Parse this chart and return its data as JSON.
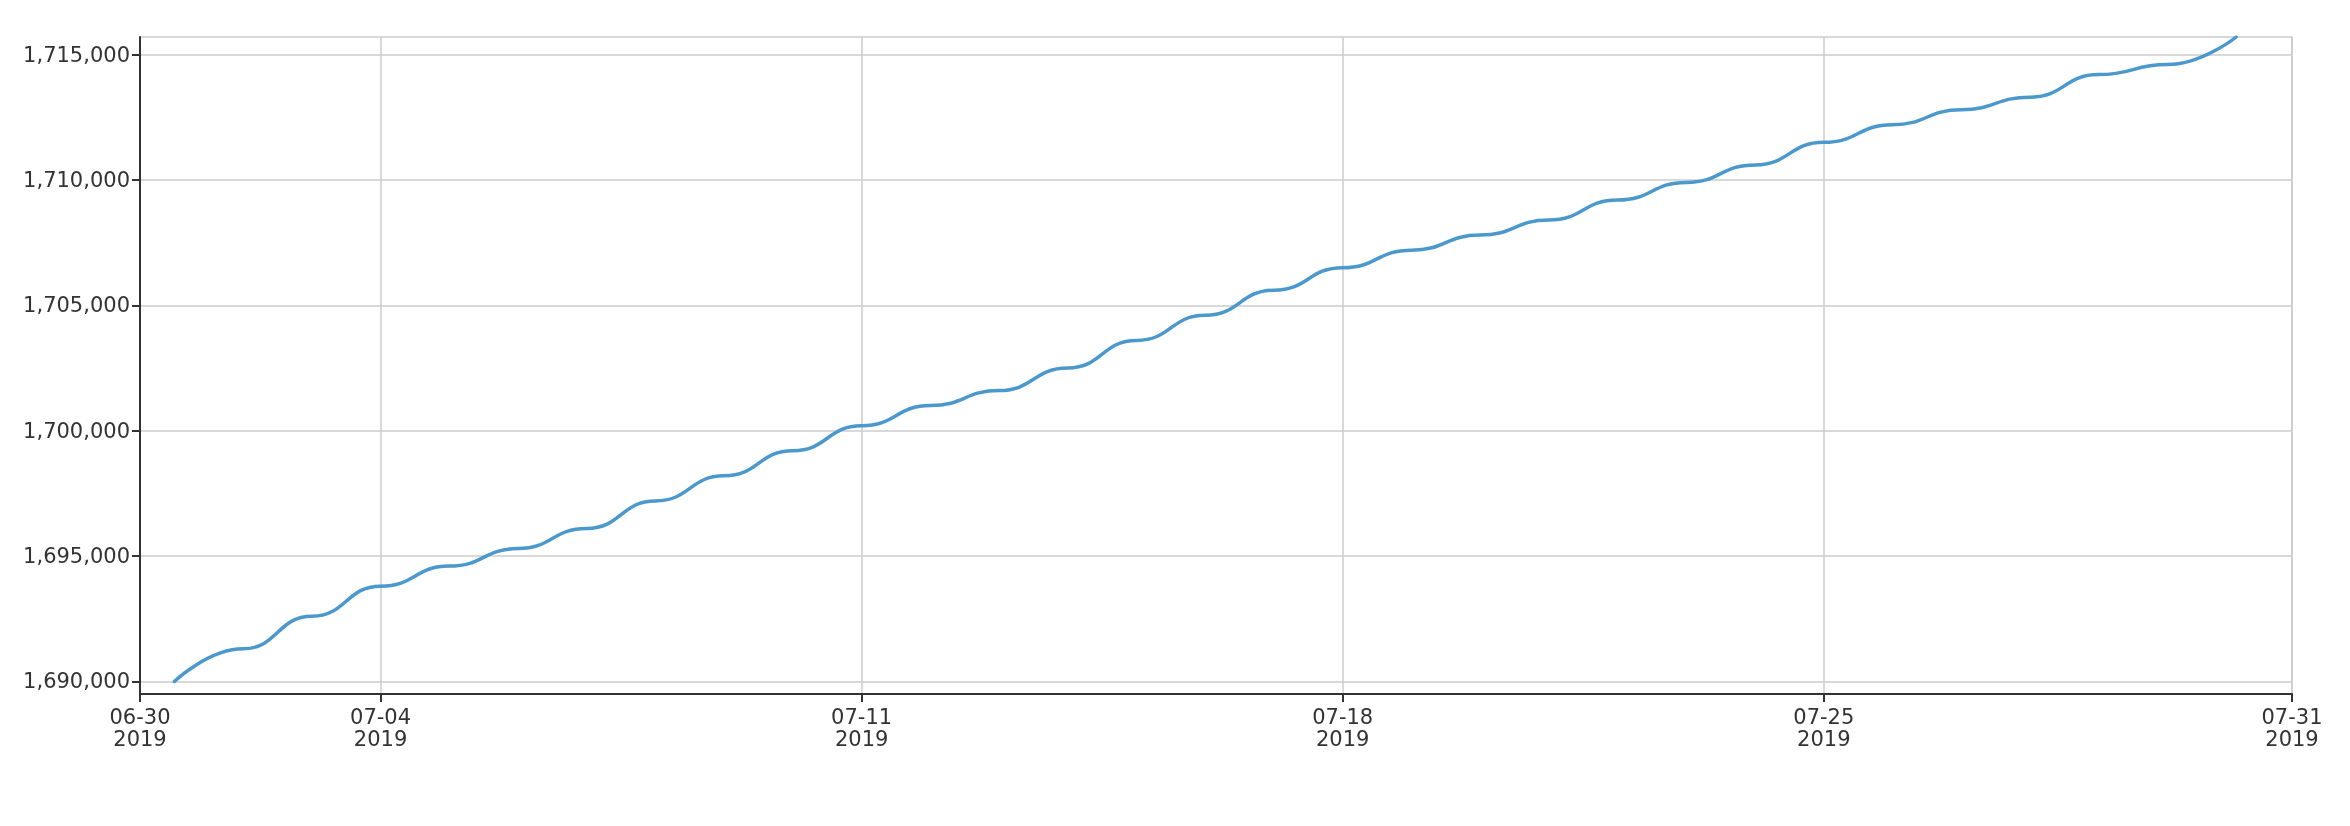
{
  "chart_data": {
    "type": "line",
    "x": [
      "2019-07-01",
      "2019-07-02",
      "2019-07-03",
      "2019-07-04",
      "2019-07-05",
      "2019-07-06",
      "2019-07-07",
      "2019-07-08",
      "2019-07-09",
      "2019-07-10",
      "2019-07-11",
      "2019-07-12",
      "2019-07-13",
      "2019-07-14",
      "2019-07-15",
      "2019-07-16",
      "2019-07-17",
      "2019-07-18",
      "2019-07-19",
      "2019-07-20",
      "2019-07-21",
      "2019-07-22",
      "2019-07-23",
      "2019-07-24",
      "2019-07-25",
      "2019-07-26",
      "2019-07-27",
      "2019-07-28",
      "2019-07-29",
      "2019-07-30",
      "2019-07-31"
    ],
    "series": [
      {
        "color": "#4a98cc",
        "values": [
          1690000,
          1691300,
          1692600,
          1693800,
          1694600,
          1695300,
          1696100,
          1697200,
          1698200,
          1699200,
          1700200,
          1701000,
          1701600,
          1702500,
          1703600,
          1704600,
          1705600,
          1706500,
          1707200,
          1707800,
          1708400,
          1709200,
          1709900,
          1710600,
          1711500,
          1712200,
          1712800,
          1713300,
          1714200,
          1714600,
          1715700
        ]
      }
    ],
    "xlim": [
      "2019-06-30T12:00",
      "2019-07-31T19:30"
    ],
    "xticks": [
      {
        "value": "2019-06-30T12:00",
        "label": "06-30\n2019"
      },
      {
        "value": "2019-07-04",
        "label": "07-04\n2019"
      },
      {
        "value": "2019-07-11",
        "label": "07-11\n2019"
      },
      {
        "value": "2019-07-18",
        "label": "07-18\n2019"
      },
      {
        "value": "2019-07-25",
        "label": "07-25\n2019"
      },
      {
        "value": "2019-07-31T19:30",
        "label": "07-31\n2019"
      }
    ],
    "ylim": [
      1689500,
      1715700
    ],
    "yticks": [
      {
        "value": 1690000,
        "label": "1,690,000"
      },
      {
        "value": 1695000,
        "label": "1,695,000"
      },
      {
        "value": 1700000,
        "label": "1,700,000"
      },
      {
        "value": 1705000,
        "label": "1,705,000"
      },
      {
        "value": 1710000,
        "label": "1,710,000"
      },
      {
        "value": 1715000,
        "label": "1,715,000"
      }
    ],
    "grid": true,
    "marker": "none",
    "line_style": "solid"
  }
}
